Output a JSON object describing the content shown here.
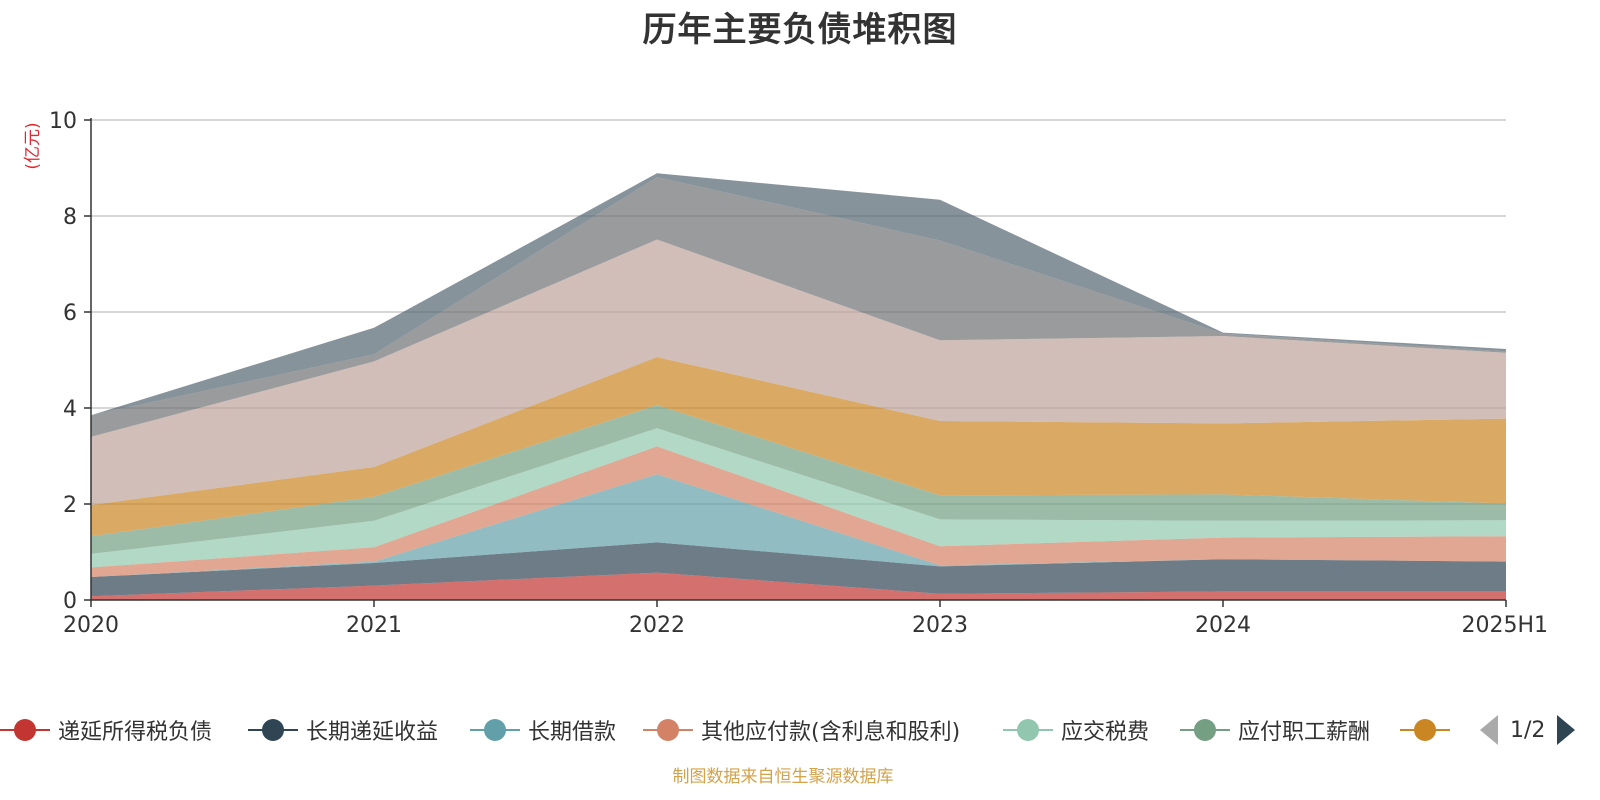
{
  "title": "历年主要负债堆积图",
  "source_note": "制图数据来自恒生聚源数据库",
  "legend_pager": {
    "text": "1/2",
    "prev_icon": "triangle-left",
    "next_icon": "triangle-right"
  },
  "chart_data": {
    "type": "area",
    "stacked": true,
    "title": "历年主要负债堆积图",
    "ylabel": "(亿元)",
    "ylim": [
      0,
      10
    ],
    "yticks": [
      0,
      2,
      4,
      6,
      8,
      10
    ],
    "grid": true,
    "legend_position": "bottom",
    "categories": [
      "2020",
      "2021",
      "2022",
      "2023",
      "2024",
      "2025H1"
    ],
    "series": [
      {
        "name": "递延所得税负债",
        "color": "#c23531",
        "legend_visible": true,
        "values": [
          0.08,
          0.3,
          0.57,
          0.13,
          0.18,
          0.18
        ]
      },
      {
        "name": "长期递延收益",
        "color": "#2f4554",
        "legend_visible": true,
        "values": [
          0.4,
          0.47,
          0.63,
          0.57,
          0.67,
          0.62
        ]
      },
      {
        "name": "长期借款",
        "color": "#61a0a8",
        "legend_visible": true,
        "values": [
          0.0,
          0.03,
          1.42,
          0.02,
          0.0,
          0.0
        ]
      },
      {
        "name": "其他应付款(含利息和股利)",
        "color": "#d48265",
        "legend_visible": true,
        "values": [
          0.2,
          0.3,
          0.58,
          0.4,
          0.45,
          0.53
        ]
      },
      {
        "name": "应交税费",
        "color": "#91c7ae",
        "legend_visible": true,
        "values": [
          0.28,
          0.55,
          0.38,
          0.56,
          0.35,
          0.33
        ]
      },
      {
        "name": "应付职工薪酬",
        "color": "#749f83",
        "legend_visible": true,
        "values": [
          0.37,
          0.5,
          0.48,
          0.5,
          0.55,
          0.35
        ]
      },
      {
        "name": "",
        "color": "#ca8622",
        "legend_visible": true,
        "values": [
          0.65,
          0.62,
          1.0,
          1.55,
          1.48,
          1.77
        ]
      },
      {
        "name": "",
        "color": "#bda29a",
        "legend_visible": false,
        "values": [
          1.42,
          2.2,
          2.45,
          1.68,
          1.82,
          1.37
        ]
      },
      {
        "name": "",
        "color": "#6e7074",
        "legend_visible": false,
        "values": [
          0.45,
          0.15,
          1.3,
          2.08,
          0.05,
          0.03
        ]
      },
      {
        "name": "",
        "color": "#546570",
        "legend_visible": false,
        "values": [
          0.0,
          0.55,
          0.08,
          0.85,
          0.02,
          0.05
        ]
      }
    ]
  }
}
